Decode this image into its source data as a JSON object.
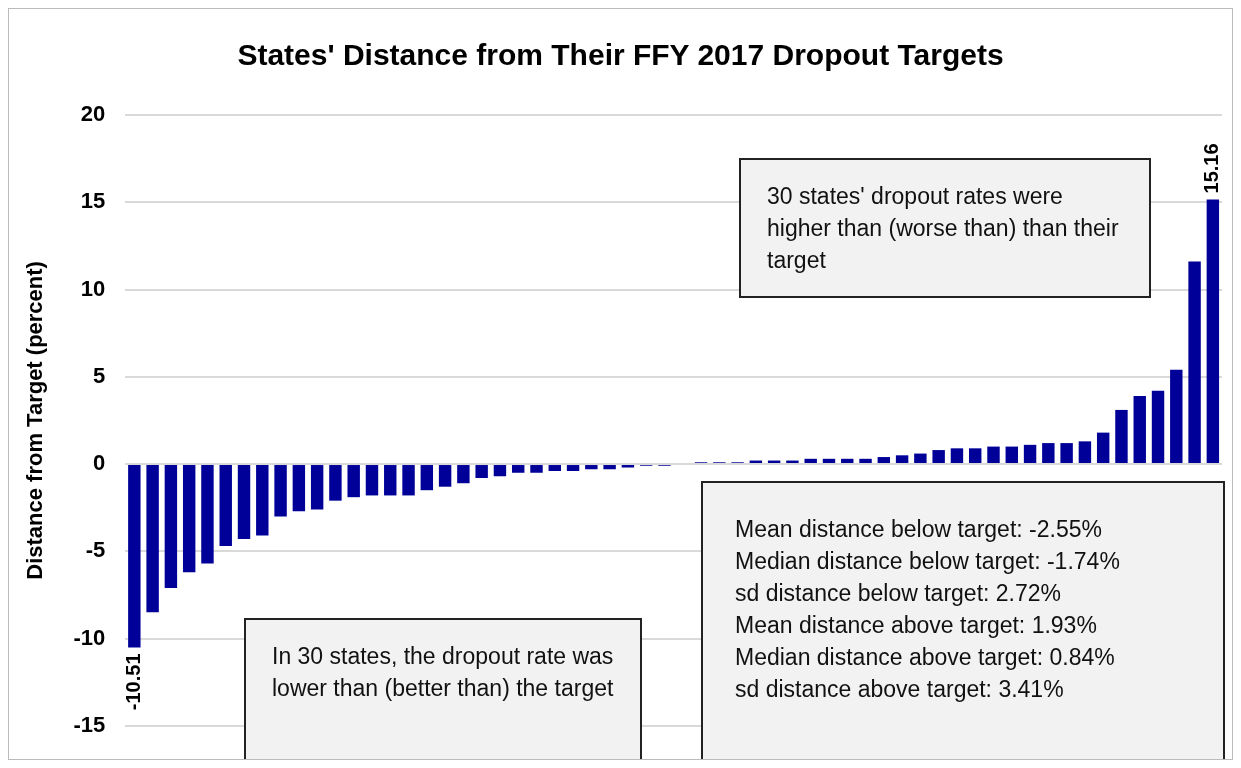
{
  "chart_data": {
    "type": "bar",
    "title": "States' Distance from Their FFY 2017 Dropout Targets",
    "ylabel": "Distance from Target (percent)",
    "categories": [
      null,
      null,
      null,
      null,
      null,
      null,
      null,
      null,
      null,
      null,
      null,
      null,
      null,
      null,
      null,
      null,
      null,
      null,
      null,
      null,
      null,
      null,
      null,
      null,
      null,
      null,
      null,
      null,
      null,
      null,
      null,
      null,
      null,
      null,
      null,
      null,
      null,
      null,
      null,
      null,
      null,
      null,
      null,
      null,
      null,
      null,
      null,
      null,
      null,
      null,
      null,
      null,
      null,
      null,
      null,
      null,
      null,
      null,
      null,
      null
    ],
    "values": [
      -10.51,
      -8.5,
      -7.1,
      -6.2,
      -5.7,
      -4.7,
      -4.3,
      -4.1,
      -3.0,
      -2.7,
      -2.6,
      -2.1,
      -1.9,
      -1.8,
      -1.8,
      -1.8,
      -1.5,
      -1.3,
      -1.1,
      -0.8,
      -0.7,
      -0.5,
      -0.5,
      -0.4,
      -0.4,
      -0.3,
      -0.3,
      -0.2,
      -0.1,
      -0.1,
      0.0,
      0.1,
      0.1,
      0.1,
      0.2,
      0.2,
      0.2,
      0.3,
      0.3,
      0.3,
      0.3,
      0.4,
      0.5,
      0.6,
      0.8,
      0.9,
      0.9,
      1.0,
      1.0,
      1.1,
      1.2,
      1.2,
      1.3,
      1.8,
      3.1,
      3.9,
      4.2,
      5.4,
      11.6,
      15.16
    ],
    "value_labels": [
      "-10.51",
      null,
      null,
      null,
      null,
      null,
      null,
      null,
      null,
      null,
      null,
      null,
      null,
      null,
      null,
      null,
      null,
      null,
      null,
      null,
      null,
      null,
      null,
      null,
      null,
      null,
      null,
      null,
      null,
      null,
      null,
      null,
      null,
      null,
      null,
      null,
      null,
      null,
      null,
      null,
      null,
      null,
      null,
      null,
      null,
      null,
      null,
      null,
      null,
      null,
      null,
      null,
      null,
      null,
      null,
      null,
      null,
      null,
      null,
      "15.16"
    ],
    "color": "#000099",
    "ylim": [
      -15,
      20
    ],
    "yticks": [
      -15,
      -10,
      -5,
      0,
      5,
      10,
      15,
      20
    ],
    "grid": "y",
    "annotations": [
      "30 states' dropout rates were higher than (worse than) than their target",
      "In 30 states, the dropout rate was lower than (better than) the target",
      "Mean  distance below target: -2.55%",
      "Median distance below target: -1.74%",
      "sd distance below target: 2.72%",
      "Mean distance above target: 1.93%",
      "Median distance above target: 0.84%",
      "sd distance above target: 3.41%"
    ]
  }
}
